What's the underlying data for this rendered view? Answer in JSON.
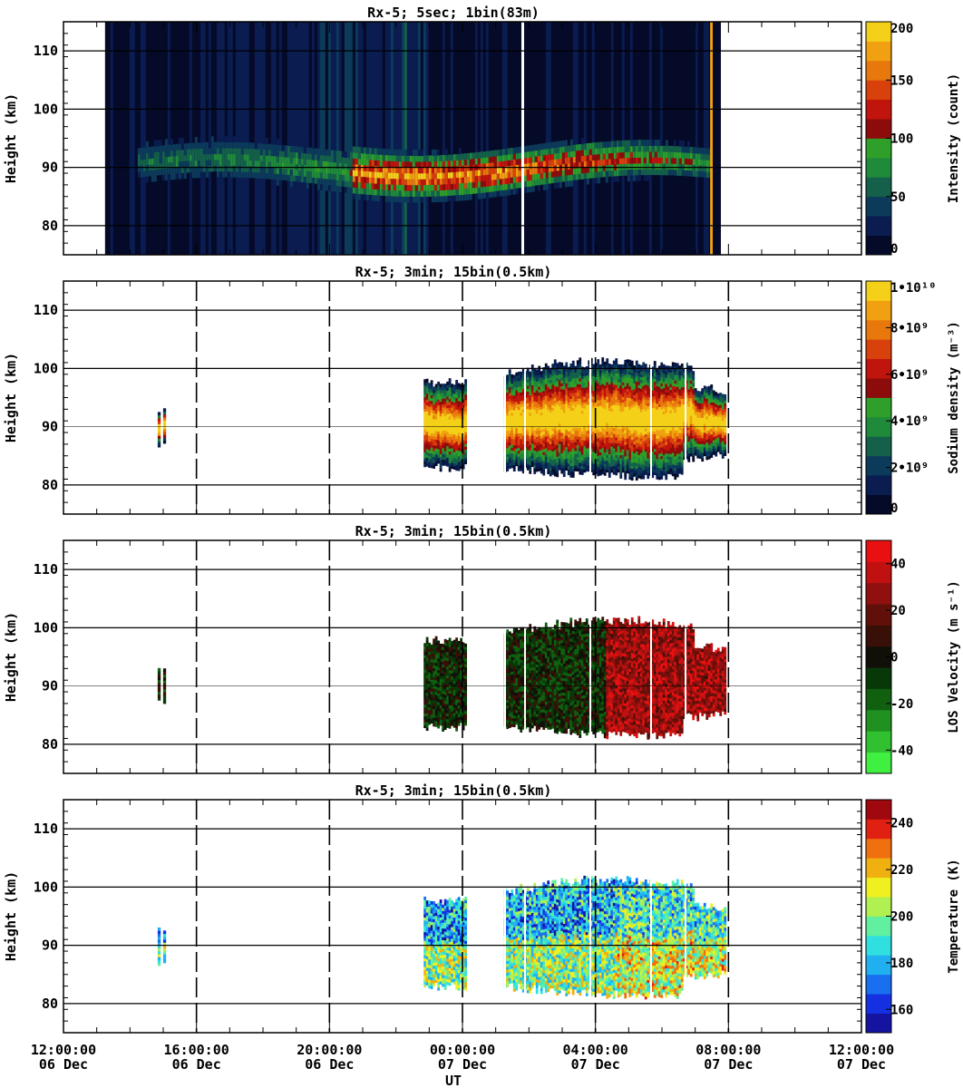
{
  "chart_data": [
    {
      "type": "heatmap",
      "title": "Rx-5;  5sec; 1bin(83m)",
      "xlabel": "",
      "ylabel": "Height (km)",
      "ylim": [
        75,
        115
      ],
      "yticks": [
        80,
        90,
        100,
        110
      ],
      "colorbar": {
        "label": "Intensity (count)",
        "ticks": [
          "0",
          "50",
          "100",
          "150",
          "200"
        ],
        "range": [
          0,
          200
        ],
        "colors": [
          "#050a28",
          "#0a1c50",
          "#0c3a5a",
          "#14604a",
          "#1f8a3a",
          "#2ea02a",
          "#8c0c0c",
          "#c0140c",
          "#d8400c",
          "#e8780c",
          "#f0a010",
          "#f4d018"
        ]
      },
      "data_extent": {
        "start": "13:15",
        "end": "07:40",
        "blank_gap": "07:45-07:55"
      },
      "sodium_layer": {
        "peak_height_km": 90,
        "top_km": 97,
        "bottom_km": 84
      }
    },
    {
      "type": "heatmap",
      "title": "Rx-5; 3min; 15bin(0.5km)",
      "xlabel": "",
      "ylabel": "Height (km)",
      "ylim": [
        75,
        115
      ],
      "yticks": [
        80,
        90,
        100,
        110
      ],
      "colorbar": {
        "label": "Sodium density (m⁻³)",
        "ticks": [
          "0",
          "2•10⁹",
          "4•10⁹",
          "6•10⁹",
          "8•10⁹",
          "1•10¹⁰"
        ],
        "range": [
          0,
          10000000000
        ],
        "colors": [
          "#050a28",
          "#0a1c50",
          "#0c3a5a",
          "#14604a",
          "#1f8a3a",
          "#2ea02a",
          "#8c0c0c",
          "#c0140c",
          "#d8400c",
          "#e8780c",
          "#f0a010",
          "#f4d018"
        ]
      },
      "data_blocks": [
        [
          "14:50",
          "15:00"
        ],
        [
          "22:50",
          "00:05"
        ],
        [
          "01:15",
          "07:55"
        ]
      ]
    },
    {
      "type": "heatmap",
      "title": "Rx-5; 3min; 15bin(0.5km)",
      "xlabel": "",
      "ylabel": "Height (km)",
      "ylim": [
        75,
        115
      ],
      "yticks": [
        80,
        90,
        100,
        110
      ],
      "colorbar": {
        "label": "LOS Velocity (m s⁻¹)",
        "ticks": [
          "-40",
          "-20",
          "0",
          "20",
          "40"
        ],
        "range": [
          -50,
          50
        ],
        "colors": [
          "#40f040",
          "#30c030",
          "#209020",
          "#106010",
          "#083808",
          "#101008",
          "#381008",
          "#601008",
          "#901010",
          "#c01010",
          "#e81010"
        ]
      },
      "data_blocks": [
        [
          "14:50",
          "15:00"
        ],
        [
          "22:50",
          "00:05"
        ],
        [
          "01:15",
          "07:55"
        ]
      ]
    },
    {
      "type": "heatmap",
      "title": "Rx-5; 3min; 15bin(0.5km)",
      "xlabel": "UT",
      "ylabel": "Height (km)",
      "ylim": [
        75,
        115
      ],
      "yticks": [
        80,
        90,
        100,
        110
      ],
      "xticks": [
        {
          "time": "12:00:00",
          "date": "06 Dec"
        },
        {
          "time": "16:00:00",
          "date": "06 Dec"
        },
        {
          "time": "20:00:00",
          "date": "06 Dec"
        },
        {
          "time": "00:00:00",
          "date": "07 Dec"
        },
        {
          "time": "04:00:00",
          "date": "07 Dec"
        },
        {
          "time": "08:00:00",
          "date": "07 Dec"
        },
        {
          "time": "12:00:00",
          "date": "07 Dec"
        }
      ],
      "colorbar": {
        "label": "Temperature (K)",
        "ticks": [
          "160",
          "180",
          "200",
          "220",
          "240"
        ],
        "range": [
          150,
          250
        ],
        "colors": [
          "#1414a0",
          "#1430e0",
          "#1870f0",
          "#20b0f0",
          "#30e0e0",
          "#60f0a0",
          "#b0f050",
          "#f0f020",
          "#f0b010",
          "#f07010",
          "#e02010",
          "#a00810"
        ]
      },
      "data_blocks": [
        [
          "14:50",
          "15:00"
        ],
        [
          "22:50",
          "00:05"
        ],
        [
          "01:15",
          "07:55"
        ]
      ]
    }
  ]
}
